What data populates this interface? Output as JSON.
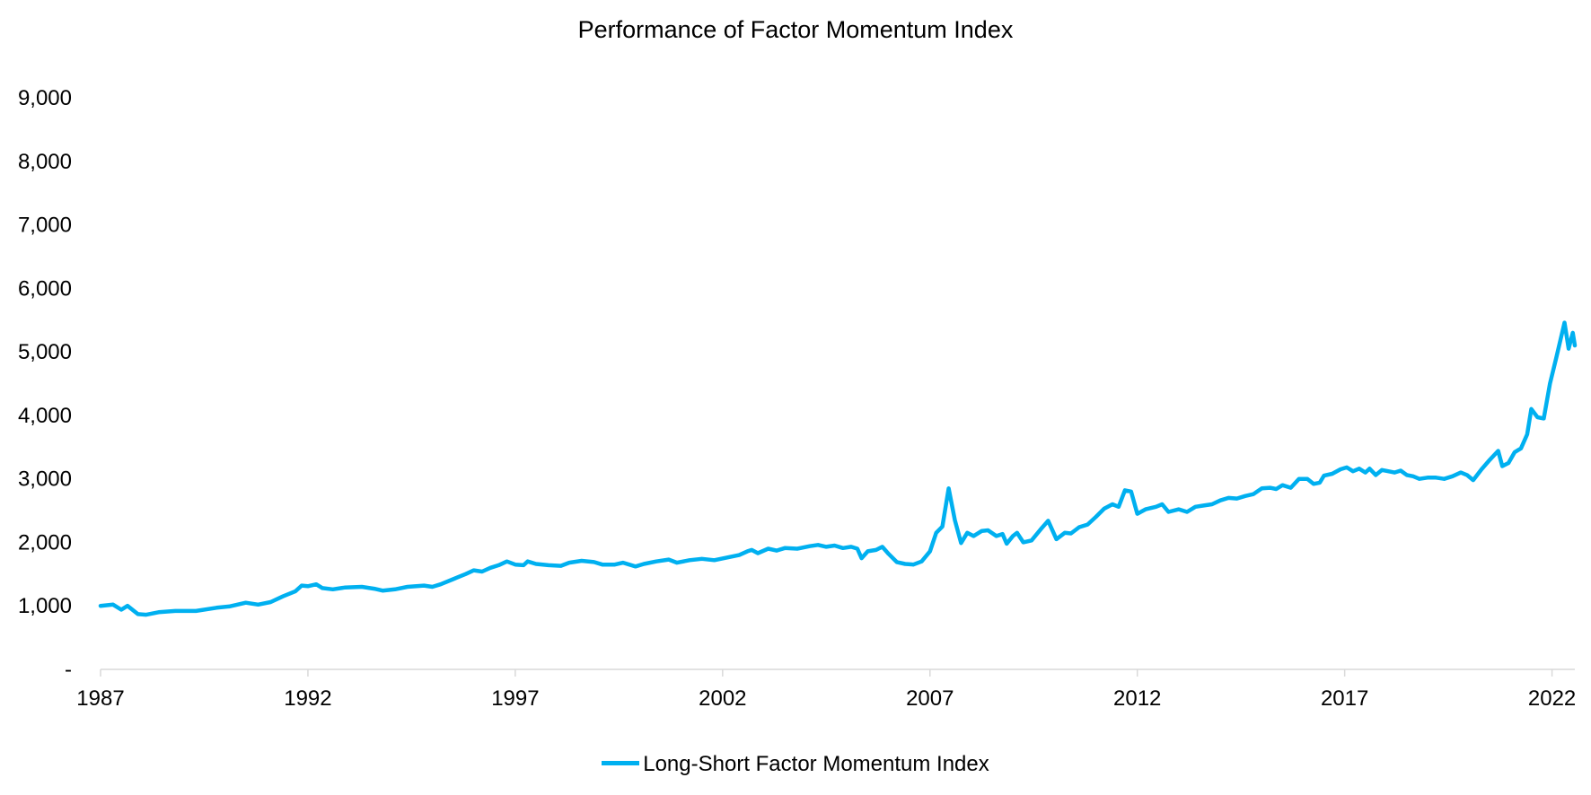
{
  "chart_data": {
    "type": "line",
    "title": "Performance of Factor Momentum Index",
    "xlabel": "",
    "ylabel": "",
    "ylim": [
      0,
      9000
    ],
    "y_ticks": [
      0,
      1000,
      2000,
      3000,
      4000,
      5000,
      6000,
      7000,
      8000,
      9000
    ],
    "y_tick_labels": [
      "-",
      "1,000",
      "2,000",
      "3,000",
      "4,000",
      "5,000",
      "6,000",
      "7,000",
      "8,000",
      "9,000"
    ],
    "xlim": [
      1987.0,
      2022.55
    ],
    "x_ticks": [
      1987,
      1992,
      1997,
      2002,
      2007,
      2012,
      2017,
      2022
    ],
    "x_tick_labels": [
      "1987",
      "1992",
      "1997",
      "2002",
      "2007",
      "2012",
      "2017",
      "2022"
    ],
    "grid": false,
    "legend_position": "bottom",
    "series": [
      {
        "name": "Long-Short Factor Momentum Index",
        "color": "#00B0F0",
        "points": [
          [
            1987.0,
            1000
          ],
          [
            1987.3,
            1020
          ],
          [
            1987.5,
            940
          ],
          [
            1987.65,
            1000
          ],
          [
            1987.9,
            870
          ],
          [
            1988.1,
            860
          ],
          [
            1988.4,
            900
          ],
          [
            1988.8,
            920
          ],
          [
            1989.3,
            920
          ],
          [
            1989.8,
            970
          ],
          [
            1990.1,
            990
          ],
          [
            1990.5,
            1050
          ],
          [
            1990.8,
            1020
          ],
          [
            1991.1,
            1060
          ],
          [
            1991.4,
            1150
          ],
          [
            1991.7,
            1230
          ],
          [
            1991.85,
            1320
          ],
          [
            1992.0,
            1310
          ],
          [
            1992.2,
            1340
          ],
          [
            1992.35,
            1280
          ],
          [
            1992.6,
            1260
          ],
          [
            1992.9,
            1290
          ],
          [
            1993.3,
            1300
          ],
          [
            1993.6,
            1270
          ],
          [
            1993.8,
            1240
          ],
          [
            1994.1,
            1260
          ],
          [
            1994.4,
            1300
          ],
          [
            1994.8,
            1320
          ],
          [
            1995.0,
            1300
          ],
          [
            1995.2,
            1340
          ],
          [
            1995.5,
            1420
          ],
          [
            1995.8,
            1500
          ],
          [
            1996.0,
            1560
          ],
          [
            1996.2,
            1540
          ],
          [
            1996.4,
            1600
          ],
          [
            1996.6,
            1640
          ],
          [
            1996.8,
            1700
          ],
          [
            1997.0,
            1650
          ],
          [
            1997.2,
            1640
          ],
          [
            1997.3,
            1700
          ],
          [
            1997.5,
            1660
          ],
          [
            1997.8,
            1640
          ],
          [
            1998.1,
            1630
          ],
          [
            1998.3,
            1680
          ],
          [
            1998.6,
            1710
          ],
          [
            1998.9,
            1690
          ],
          [
            1999.1,
            1650
          ],
          [
            1999.4,
            1650
          ],
          [
            1999.6,
            1680
          ],
          [
            1999.9,
            1620
          ],
          [
            2000.1,
            1660
          ],
          [
            2000.4,
            1700
          ],
          [
            2000.7,
            1730
          ],
          [
            2000.9,
            1680
          ],
          [
            2001.2,
            1720
          ],
          [
            2001.5,
            1740
          ],
          [
            2001.8,
            1720
          ],
          [
            2002.1,
            1760
          ],
          [
            2002.4,
            1800
          ],
          [
            2002.6,
            1860
          ],
          [
            2002.7,
            1880
          ],
          [
            2002.85,
            1830
          ],
          [
            2003.1,
            1900
          ],
          [
            2003.3,
            1870
          ],
          [
            2003.5,
            1910
          ],
          [
            2003.8,
            1900
          ],
          [
            2004.1,
            1940
          ],
          [
            2004.3,
            1960
          ],
          [
            2004.5,
            1930
          ],
          [
            2004.7,
            1950
          ],
          [
            2004.9,
            1910
          ],
          [
            2005.1,
            1930
          ],
          [
            2005.25,
            1900
          ],
          [
            2005.35,
            1750
          ],
          [
            2005.5,
            1860
          ],
          [
            2005.7,
            1880
          ],
          [
            2005.85,
            1930
          ],
          [
            2006.0,
            1820
          ],
          [
            2006.2,
            1690
          ],
          [
            2006.4,
            1660
          ],
          [
            2006.6,
            1650
          ],
          [
            2006.8,
            1700
          ],
          [
            2007.0,
            1860
          ],
          [
            2007.15,
            2150
          ],
          [
            2007.3,
            2250
          ],
          [
            2007.45,
            2850
          ],
          [
            2007.6,
            2350
          ],
          [
            2007.75,
            1990
          ],
          [
            2007.9,
            2150
          ],
          [
            2008.05,
            2100
          ],
          [
            2008.25,
            2180
          ],
          [
            2008.4,
            2190
          ],
          [
            2008.6,
            2100
          ],
          [
            2008.75,
            2130
          ],
          [
            2008.85,
            1980
          ],
          [
            2009.0,
            2100
          ],
          [
            2009.1,
            2150
          ],
          [
            2009.25,
            2000
          ],
          [
            2009.45,
            2030
          ],
          [
            2009.7,
            2230
          ],
          [
            2009.85,
            2340
          ],
          [
            2010.05,
            2050
          ],
          [
            2010.25,
            2150
          ],
          [
            2010.4,
            2140
          ],
          [
            2010.6,
            2240
          ],
          [
            2010.8,
            2280
          ],
          [
            2011.0,
            2400
          ],
          [
            2011.2,
            2530
          ],
          [
            2011.4,
            2600
          ],
          [
            2011.55,
            2560
          ],
          [
            2011.7,
            2820
          ],
          [
            2011.85,
            2800
          ],
          [
            2012.0,
            2450
          ],
          [
            2012.2,
            2520
          ],
          [
            2012.45,
            2560
          ],
          [
            2012.6,
            2600
          ],
          [
            2012.75,
            2480
          ],
          [
            2013.0,
            2520
          ],
          [
            2013.2,
            2480
          ],
          [
            2013.4,
            2560
          ],
          [
            2013.6,
            2580
          ],
          [
            2013.8,
            2600
          ],
          [
            2014.0,
            2660
          ],
          [
            2014.2,
            2700
          ],
          [
            2014.4,
            2690
          ],
          [
            2014.6,
            2730
          ],
          [
            2014.8,
            2760
          ],
          [
            2015.0,
            2850
          ],
          [
            2015.2,
            2860
          ],
          [
            2015.35,
            2840
          ],
          [
            2015.5,
            2900
          ],
          [
            2015.7,
            2860
          ],
          [
            2015.9,
            3000
          ],
          [
            2016.1,
            3000
          ],
          [
            2016.25,
            2920
          ],
          [
            2016.4,
            2940
          ],
          [
            2016.5,
            3050
          ],
          [
            2016.7,
            3080
          ],
          [
            2016.9,
            3150
          ],
          [
            2017.05,
            3180
          ],
          [
            2017.2,
            3120
          ],
          [
            2017.35,
            3160
          ],
          [
            2017.5,
            3100
          ],
          [
            2017.6,
            3160
          ],
          [
            2017.75,
            3060
          ],
          [
            2017.9,
            3140
          ],
          [
            2018.05,
            3120
          ],
          [
            2018.2,
            3100
          ],
          [
            2018.35,
            3130
          ],
          [
            2018.5,
            3060
          ],
          [
            2018.65,
            3040
          ],
          [
            2018.8,
            3000
          ],
          [
            2019.0,
            3020
          ],
          [
            2019.2,
            3020
          ],
          [
            2019.4,
            3000
          ],
          [
            2019.6,
            3040
          ],
          [
            2019.8,
            3100
          ],
          [
            2019.95,
            3060
          ],
          [
            2020.1,
            2980
          ],
          [
            2020.3,
            3150
          ],
          [
            2020.5,
            3300
          ],
          [
            2020.7,
            3440
          ],
          [
            2020.8,
            3200
          ],
          [
            2020.95,
            3250
          ],
          [
            2021.1,
            3420
          ],
          [
            2021.25,
            3480
          ],
          [
            2021.4,
            3700
          ],
          [
            2021.5,
            4100
          ],
          [
            2021.65,
            3970
          ],
          [
            2021.8,
            3950
          ],
          [
            2021.95,
            4500
          ],
          [
            2022.1,
            4900
          ],
          [
            2022.3,
            5460
          ],
          [
            2022.4,
            5050
          ],
          [
            2022.5,
            5300
          ],
          [
            2022.55,
            5100
          ]
        ]
      }
    ]
  }
}
